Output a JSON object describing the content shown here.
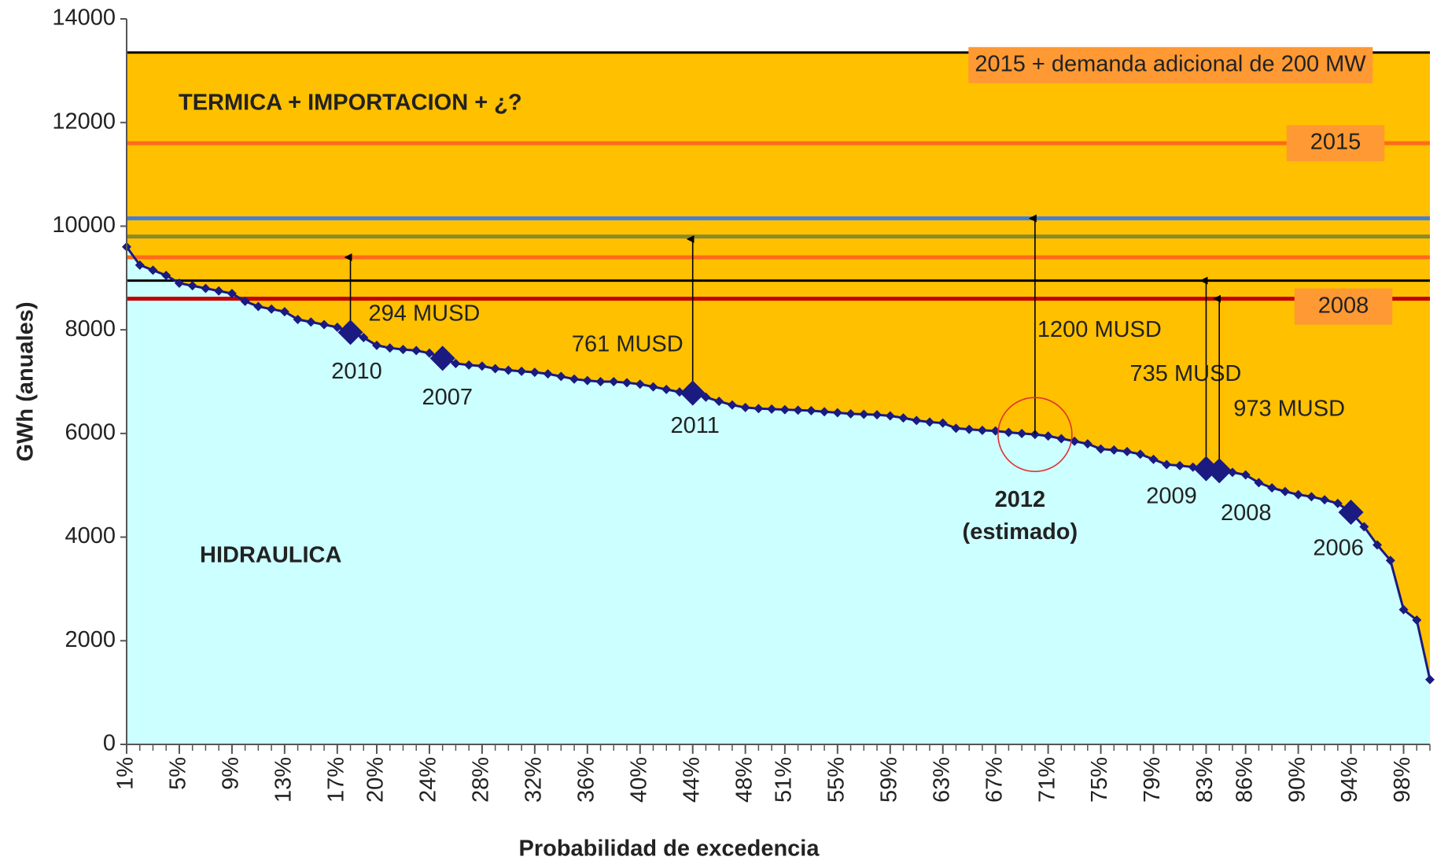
{
  "chart_data": {
    "type": "area",
    "y_label": "GWh (anuales)",
    "x_label": "Probabilidad de excedencia",
    "x": [
      1,
      2,
      3,
      4,
      5,
      6,
      7,
      8,
      9,
      10,
      11,
      12,
      13,
      14,
      15,
      16,
      17,
      18,
      19,
      20,
      21,
      22,
      23,
      24,
      25,
      26,
      27,
      28,
      29,
      30,
      31,
      32,
      33,
      34,
      35,
      36,
      37,
      38,
      39,
      40,
      41,
      42,
      43,
      44,
      45,
      46,
      47,
      48,
      49,
      50,
      51,
      52,
      53,
      54,
      55,
      56,
      57,
      58,
      59,
      60,
      61,
      62,
      63,
      64,
      65,
      66,
      67,
      68,
      69,
      70,
      71,
      72,
      73,
      74,
      75,
      76,
      77,
      78,
      79,
      80,
      81,
      82,
      83,
      84,
      85,
      86,
      87,
      88,
      89,
      90,
      91,
      92,
      93,
      94,
      95,
      96,
      97,
      98,
      99,
      100
    ],
    "values": [
      9600,
      9250,
      9150,
      9050,
      8900,
      8850,
      8800,
      8750,
      8700,
      8550,
      8450,
      8400,
      8350,
      8200,
      8150,
      8100,
      8050,
      7950,
      7850,
      7700,
      7650,
      7620,
      7600,
      7550,
      7450,
      7350,
      7320,
      7300,
      7250,
      7220,
      7200,
      7180,
      7150,
      7100,
      7050,
      7020,
      7000,
      7000,
      6980,
      6950,
      6900,
      6850,
      6800,
      6780,
      6700,
      6620,
      6550,
      6500,
      6480,
      6470,
      6460,
      6450,
      6440,
      6420,
      6400,
      6380,
      6370,
      6360,
      6340,
      6300,
      6250,
      6220,
      6200,
      6100,
      6080,
      6060,
      6050,
      6020,
      6000,
      5980,
      5950,
      5900,
      5850,
      5800,
      5700,
      5680,
      5650,
      5600,
      5500,
      5400,
      5380,
      5350,
      5320,
      5280,
      5250,
      5200,
      5050,
      4950,
      4880,
      4820,
      4780,
      4720,
      4650,
      4480,
      4200,
      3850,
      3550,
      2600,
      2400,
      1250
    ],
    "color": "#1a1a80",
    "fill_below": "#ccffff",
    "fill_above": "#ffc000",
    "xlim": [
      1,
      100
    ],
    "xticks": [
      {
        "value": 1,
        "label": "1%"
      },
      {
        "value": 5,
        "label": "5%"
      },
      {
        "value": 9,
        "label": "9%"
      },
      {
        "value": 13,
        "label": "13%"
      },
      {
        "value": 17,
        "label": "17%"
      },
      {
        "value": 20,
        "label": "20%"
      },
      {
        "value": 24,
        "label": "24%"
      },
      {
        "value": 28,
        "label": "28%"
      },
      {
        "value": 32,
        "label": "32%"
      },
      {
        "value": 36,
        "label": "36%"
      },
      {
        "value": 40,
        "label": "40%"
      },
      {
        "value": 44,
        "label": "44%"
      },
      {
        "value": 48,
        "label": "48%"
      },
      {
        "value": 51,
        "label": "51%"
      },
      {
        "value": 55,
        "label": "55%"
      },
      {
        "value": 59,
        "label": "59%"
      },
      {
        "value": 63,
        "label": "63%"
      },
      {
        "value": 67,
        "label": "67%"
      },
      {
        "value": 71,
        "label": "71%"
      },
      {
        "value": 75,
        "label": "75%"
      },
      {
        "value": 79,
        "label": "79%"
      },
      {
        "value": 83,
        "label": "83%"
      },
      {
        "value": 86,
        "label": "86%"
      },
      {
        "value": 90,
        "label": "90%"
      },
      {
        "value": 94,
        "label": "94%"
      },
      {
        "value": 98,
        "label": "98%"
      }
    ],
    "ylim": [
      0,
      14000
    ],
    "yticks": [
      0,
      2000,
      4000,
      6000,
      8000,
      10000,
      12000,
      14000
    ],
    "levels": [
      {
        "value": 13350,
        "color": "#000000",
        "label": "2015 + demanda adicional de 200 MW"
      },
      {
        "value": 11600,
        "color": "#ff6a1a",
        "label": "2015"
      },
      {
        "value": 10150,
        "color": "#3f7fe0"
      },
      {
        "value": 9800,
        "color": "#8a8a2a"
      },
      {
        "value": 9400,
        "color": "#ff6a1a"
      },
      {
        "value": 8950,
        "color": "#000000"
      },
      {
        "value": 8600,
        "color": "#c00000",
        "label": "2008"
      }
    ],
    "label_box_color": "#ff9933",
    "highlights": [
      {
        "x": 18,
        "value": 7950,
        "label": "2010"
      },
      {
        "x": 25,
        "value": 7450,
        "label": "2007"
      },
      {
        "x": 44,
        "value": 6780,
        "label": "2011"
      },
      {
        "x": 70,
        "value": 5980,
        "label": "2012",
        "note": "(estimado)",
        "marker": "circle"
      },
      {
        "x": 83,
        "value": 5320,
        "label": "2009"
      },
      {
        "x": 84,
        "value": 5280,
        "label": "2008"
      },
      {
        "x": 94,
        "value": 4480,
        "label": "2006"
      }
    ],
    "arrows": [
      {
        "x": 18,
        "from": 7950,
        "to": 9400,
        "label": "294 MUSD"
      },
      {
        "x": 44,
        "from": 6780,
        "to": 9750,
        "label": "761 MUSD"
      },
      {
        "x": 70,
        "from": 5980,
        "to": 10150,
        "label": "1200 MUSD"
      },
      {
        "x": 83,
        "from": 5320,
        "to": 8950,
        "label": "735 MUSD"
      },
      {
        "x": 84,
        "from": 5280,
        "to": 8600,
        "label": "973 MUSD"
      }
    ],
    "annotations": [
      "TERMICA + IMPORTACION + ¿?",
      "HIDRAULICA"
    ]
  }
}
